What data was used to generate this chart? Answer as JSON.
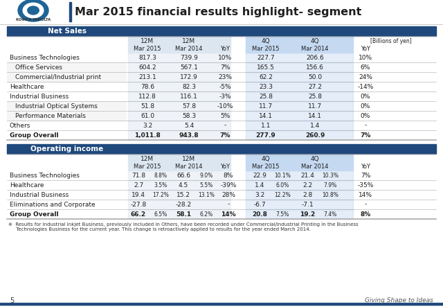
{
  "title": "Mar 2015 financial results highlight- segment",
  "header_bg": "#1f497d",
  "header_text_color": "#ffffff",
  "col_bg_12m": "#dce6f1",
  "col_bg_4q": "#c5d9f1",
  "net_sales_header": "Net Sales",
  "operating_header": "Operating income",
  "net_sales_rows": [
    {
      "label": "Business Technologies",
      "indent": false,
      "v1": "817.3",
      "v2": "739.9",
      "yoy": "10%",
      "v3": "227.7",
      "v4": "206.6",
      "yoy2": "10%",
      "bold": false
    },
    {
      "label": "  Office Services",
      "indent": true,
      "v1": "604.2",
      "v2": "567.1",
      "yoy": "7%",
      "v3": "165.5",
      "v4": "156.6",
      "yoy2": "6%",
      "bold": false
    },
    {
      "label": "  Commercial/Industrial print",
      "indent": true,
      "v1": "213.1",
      "v2": "172.9",
      "yoy": "23%",
      "v3": "62.2",
      "v4": "50.0",
      "yoy2": "24%",
      "bold": false
    },
    {
      "label": "Healthcare",
      "indent": false,
      "v1": "78.6",
      "v2": "82.3",
      "yoy": "-5%",
      "v3": "23.3",
      "v4": "27.2",
      "yoy2": "-14%",
      "bold": false
    },
    {
      "label": "Industrial Business",
      "indent": false,
      "v1": "112.8",
      "v2": "116.1",
      "yoy": "-3%",
      "v3": "25.8",
      "v4": "25.8",
      "yoy2": "0%",
      "bold": false
    },
    {
      "label": "  Industrial Optical Systems",
      "indent": true,
      "v1": "51.8",
      "v2": "57.8",
      "yoy": "-10%",
      "v3": "11.7",
      "v4": "11.7",
      "yoy2": "0%",
      "bold": false
    },
    {
      "label": "  Performance Materials",
      "indent": true,
      "v1": "61.0",
      "v2": "58.3",
      "yoy": "5%",
      "v3": "14.1",
      "v4": "14.1",
      "yoy2": "0%",
      "bold": false
    },
    {
      "label": "Others",
      "indent": false,
      "v1": "3.2",
      "v2": "5.4",
      "yoy": "-",
      "v3": "1.1",
      "v4": "1.4",
      "yoy2": "-",
      "bold": false
    },
    {
      "label": "Group Overall",
      "indent": false,
      "v1": "1,011.8",
      "v2": "943.8",
      "yoy": "7%",
      "v3": "277.9",
      "v4": "260.9",
      "yoy2": "7%",
      "bold": true
    }
  ],
  "op_income_rows": [
    {
      "label": "Business Technologies",
      "v1": "71.8",
      "p1": "8.8%",
      "v2": "66.6",
      "p2": "9.0%",
      "yoy": "8%",
      "v3": "22.9",
      "p3": "10.1%",
      "v4": "21.4",
      "p4": "10.3%",
      "yoy2": "7%",
      "bold": false
    },
    {
      "label": "Healthcare",
      "v1": "2.7",
      "p1": "3.5%",
      "v2": "4.5",
      "p2": "5.5%",
      "yoy": "-39%",
      "v3": "1.4",
      "p3": "6.0%",
      "v4": "2.2",
      "p4": "7.9%",
      "yoy2": "-35%",
      "bold": false
    },
    {
      "label": "Industrial Business",
      "v1": "19.4",
      "p1": "17.2%",
      "v2": "15.2",
      "p2": "13.1%",
      "yoy": "28%",
      "v3": "3.2",
      "p3": "12.2%",
      "v4": "2.8",
      "p4": "10.8%",
      "yoy2": "14%",
      "bold": false
    },
    {
      "label": "Eliminations and Corporate",
      "v1": "-27.8",
      "p1": "",
      "v2": "-28.2",
      "p2": "",
      "yoy": "-",
      "v3": "-6.7",
      "p3": "",
      "v4": "-7.1",
      "p4": "",
      "yoy2": "-",
      "bold": false
    },
    {
      "label": "Group Overall",
      "v1": "66.2",
      "p1": "6.5%",
      "v2": "58.1",
      "p2": "6.2%",
      "yoy": "14%",
      "v3": "20.8",
      "p3": "7.5%",
      "v4": "19.2",
      "p4": "7.4%",
      "yoy2": "8%",
      "bold": true
    }
  ],
  "footnote_line1": "※  Results for Industrial Inkjet Business, previously included in Others, have been recorded under Commercial/Industrial Printing in the Business",
  "footnote_line2": "     Technologies Business for the current year. This change is retroactively applied to results for the year ended March 2014.",
  "page_num": "5",
  "tagline": "Giving Shape to Ideas"
}
